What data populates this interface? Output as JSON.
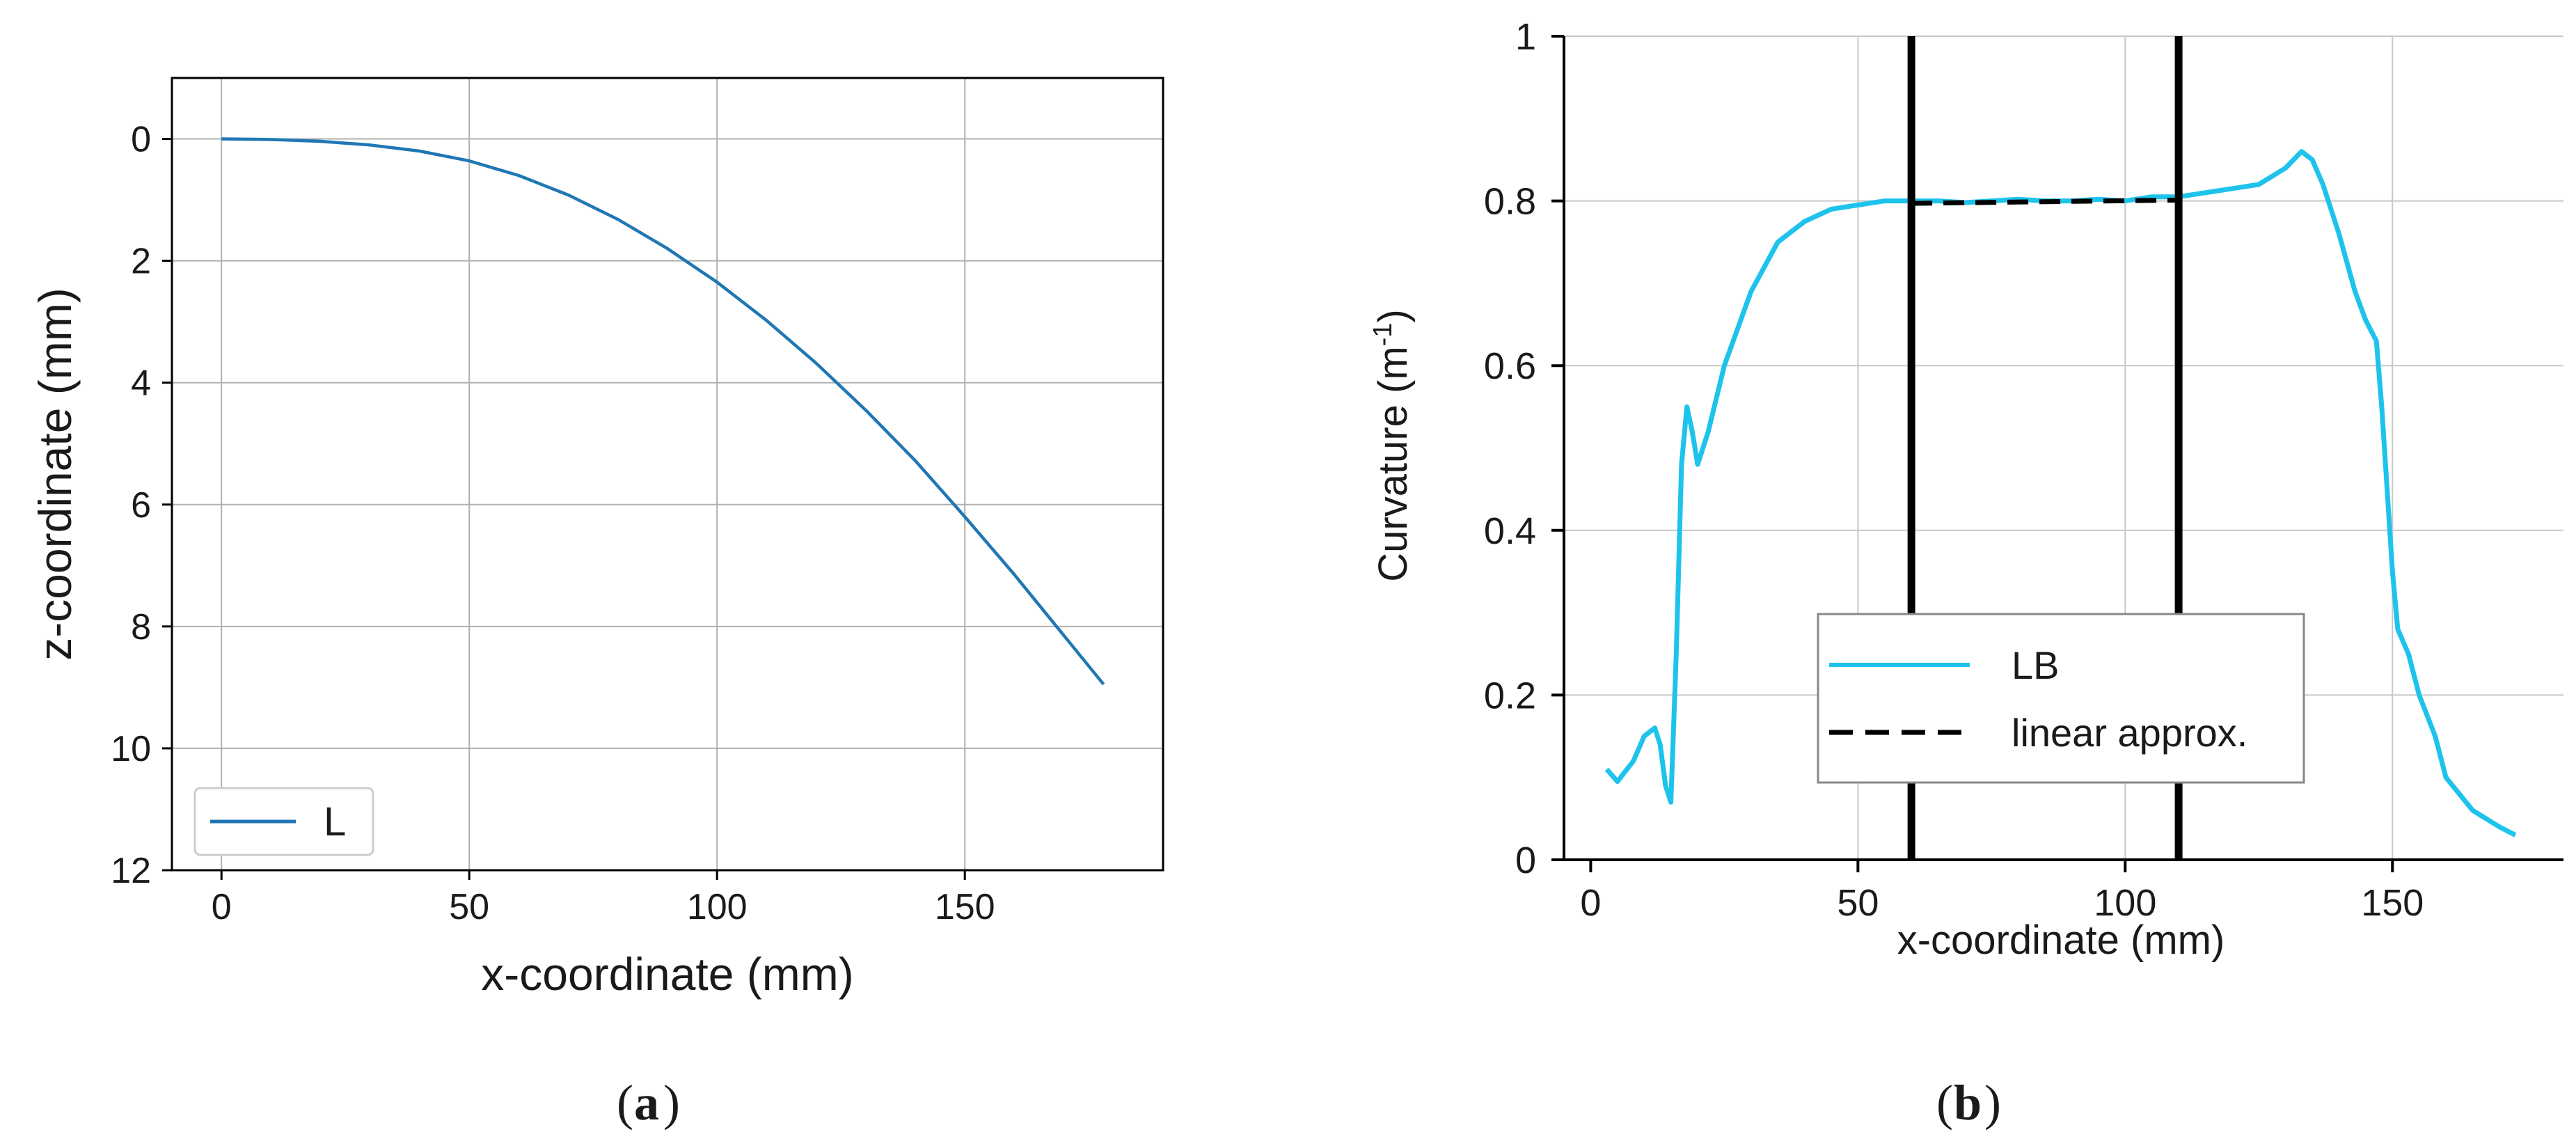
{
  "chart_data": [
    {
      "panel": "a",
      "type": "line",
      "caption": "(a)",
      "caption_letter": "a",
      "xlabel": "x-coordinate (mm)",
      "ylabel": "z-coordinate (mm)",
      "xlim": [
        -10,
        190
      ],
      "ylim": [
        12,
        -1
      ],
      "y_inverted": true,
      "xticks": [
        "0",
        "50",
        "100",
        "150"
      ],
      "yticks": [
        "0",
        "2",
        "4",
        "6",
        "8",
        "10",
        "12"
      ],
      "grid": true,
      "legend_position": "lower-left",
      "colors": {
        "series": "#1f77b4",
        "grid": "#b0b0b0",
        "axes": "#000000"
      },
      "series": [
        {
          "name": "L",
          "x": [
            0,
            10,
            20,
            30,
            40,
            50,
            60,
            70,
            80,
            90,
            100,
            110,
            120,
            130,
            140,
            150,
            160,
            170,
            178
          ],
          "y": [
            0.0,
            0.01,
            0.04,
            0.1,
            0.2,
            0.36,
            0.6,
            0.92,
            1.32,
            1.8,
            2.35,
            2.98,
            3.68,
            4.45,
            5.28,
            6.2,
            7.15,
            8.15,
            8.95
          ]
        }
      ]
    },
    {
      "panel": "b",
      "type": "line",
      "caption": "(b)",
      "caption_letter": "b",
      "xlabel": "x-coordinate (mm)",
      "ylabel_main": "Curvature (m",
      "ylabel_sup": "-1",
      "ylabel_close": ")",
      "xlim": [
        -5,
        182
      ],
      "ylim": [
        0,
        1
      ],
      "xticks": [
        "0",
        "50",
        "100",
        "150"
      ],
      "yticks": [
        "0",
        "0.2",
        "0.4",
        "0.6",
        "0.8",
        "1"
      ],
      "grid": true,
      "legend_position": "lower-center",
      "vertical_lines": [
        60,
        110
      ],
      "colors": {
        "series": "#1ec3ec",
        "approx": "#000000",
        "grid": "#c8c8c8",
        "axes": "#000000"
      },
      "series": [
        {
          "name": "LB",
          "x": [
            3,
            5,
            8,
            10,
            12,
            13,
            14,
            15,
            16,
            17,
            18,
            19,
            20,
            22,
            25,
            30,
            35,
            40,
            45,
            50,
            55,
            60,
            65,
            70,
            75,
            80,
            85,
            90,
            95,
            100,
            105,
            110,
            115,
            120,
            125,
            130,
            133,
            135,
            137,
            140,
            143,
            145,
            147,
            148,
            149,
            150,
            151,
            153,
            155,
            158,
            160,
            165,
            170,
            173
          ],
          "y": [
            0.11,
            0.095,
            0.12,
            0.15,
            0.16,
            0.14,
            0.09,
            0.07,
            0.25,
            0.48,
            0.55,
            0.52,
            0.48,
            0.52,
            0.6,
            0.69,
            0.75,
            0.775,
            0.79,
            0.795,
            0.8,
            0.8,
            0.8,
            0.798,
            0.8,
            0.802,
            0.8,
            0.8,
            0.802,
            0.8,
            0.805,
            0.805,
            0.81,
            0.815,
            0.82,
            0.84,
            0.86,
            0.85,
            0.82,
            0.76,
            0.69,
            0.655,
            0.63,
            0.55,
            0.45,
            0.35,
            0.28,
            0.25,
            0.2,
            0.15,
            0.1,
            0.06,
            0.04,
            0.03
          ]
        },
        {
          "name": "linear approx.",
          "style": "dashed",
          "x": [
            60,
            110
          ],
          "y": [
            0.797,
            0.801
          ]
        }
      ]
    }
  ]
}
